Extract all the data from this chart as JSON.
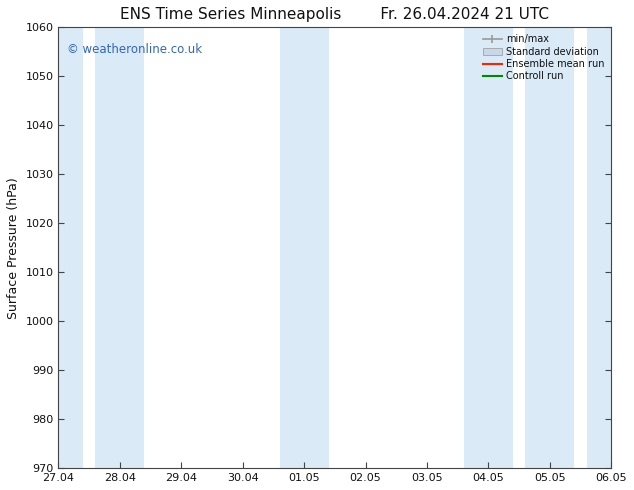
{
  "title_left": "ENS Time Series Minneapolis",
  "title_right": "Fr. 26.04.2024 21 UTC",
  "ylabel": "Surface Pressure (hPa)",
  "ylim": [
    970,
    1060
  ],
  "yticks": [
    970,
    980,
    990,
    1000,
    1010,
    1020,
    1030,
    1040,
    1050,
    1060
  ],
  "xtick_labels": [
    "27.04",
    "28.04",
    "29.04",
    "30.04",
    "01.05",
    "02.05",
    "03.05",
    "04.05",
    "05.05",
    "06.05"
  ],
  "num_xticks": 10,
  "bg_color": "#ffffff",
  "plot_bg_color": "#ffffff",
  "shaded_color": "#daeaf7",
  "watermark_text": "© weatheronline.co.uk",
  "watermark_color": "#3366bb",
  "legend_labels": [
    "min/max",
    "Standard deviation",
    "Ensemble mean run",
    "Controll run"
  ],
  "legend_colors": [
    "#999999",
    "#c0d0e0",
    "#ff0000",
    "#00aa00"
  ],
  "font_color": "#111111",
  "title_fontsize": 11,
  "tick_fontsize": 8,
  "ylabel_fontsize": 9
}
